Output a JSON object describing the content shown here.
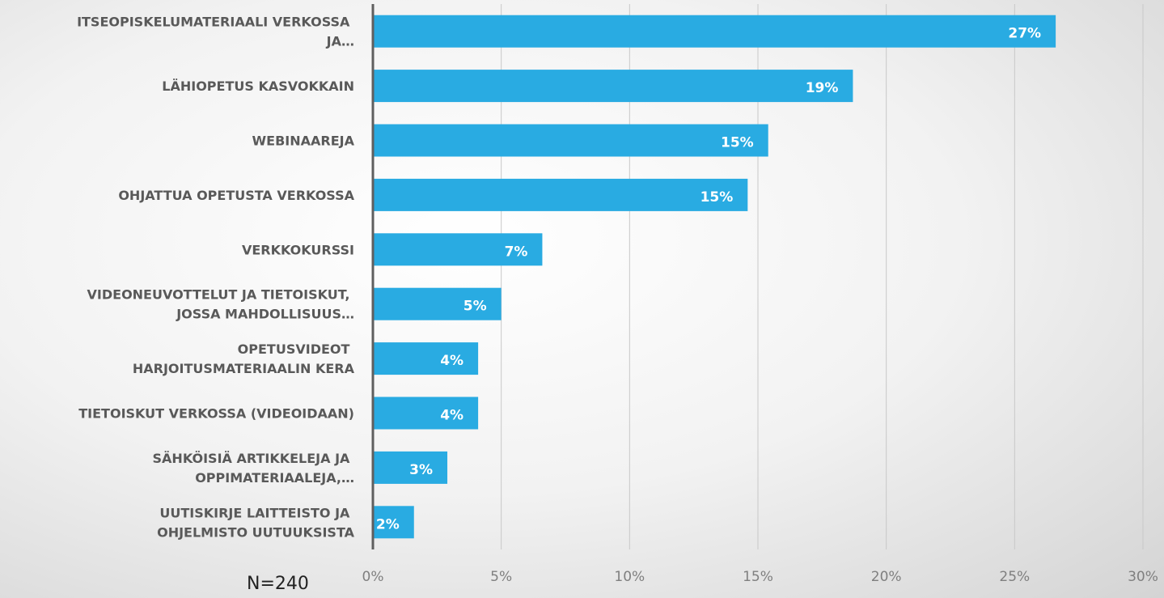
{
  "chart_data": {
    "type": "hbar",
    "categories": [
      "ITSEOPISKELUMATERIAALI VERKOSSA JA…",
      "LÄHIOPETUS KASVOKKAIN",
      "WEBINAAREJA",
      "OHJATTUA OPETUSTA VERKOSSA",
      "VERKKOKURSSI",
      "VIDEONEUVOTTELUT JA TIETOISKUT, JOSSA MAHDOLLISUUS…",
      "OPETUSVIDEOT HARJOITUSMATERIAALIN KERA",
      "TIETOISKUT VERKOSSA (VIDEOIDAAN)",
      "SÄHKÖISIÄ ARTIKKELEJA JA OPPIMATERIAALEJA,…",
      "UUTISKIRJE LAITTEISTO JA OHJELMISTO UUTUUKSISTA"
    ],
    "values": [
      26.6,
      18.7,
      15.4,
      14.6,
      6.6,
      5.0,
      4.1,
      4.1,
      2.9,
      1.6
    ],
    "value_labels": [
      "27%",
      "19%",
      "15%",
      "15%",
      "7%",
      "5%",
      "4%",
      "4%",
      "3%",
      "2%"
    ],
    "color": "#29abe2",
    "xlim": [
      0,
      30
    ],
    "xticks": [
      {
        "value": 0,
        "label": "0%"
      },
      {
        "value": 5,
        "label": "5%"
      },
      {
        "value": 10,
        "label": "10%"
      },
      {
        "value": 15,
        "label": "15%"
      },
      {
        "value": 20,
        "label": "20%"
      },
      {
        "value": 25,
        "label": "25%"
      },
      {
        "value": 30,
        "label": "30%"
      }
    ],
    "grid": true,
    "annotation": "N=240"
  }
}
